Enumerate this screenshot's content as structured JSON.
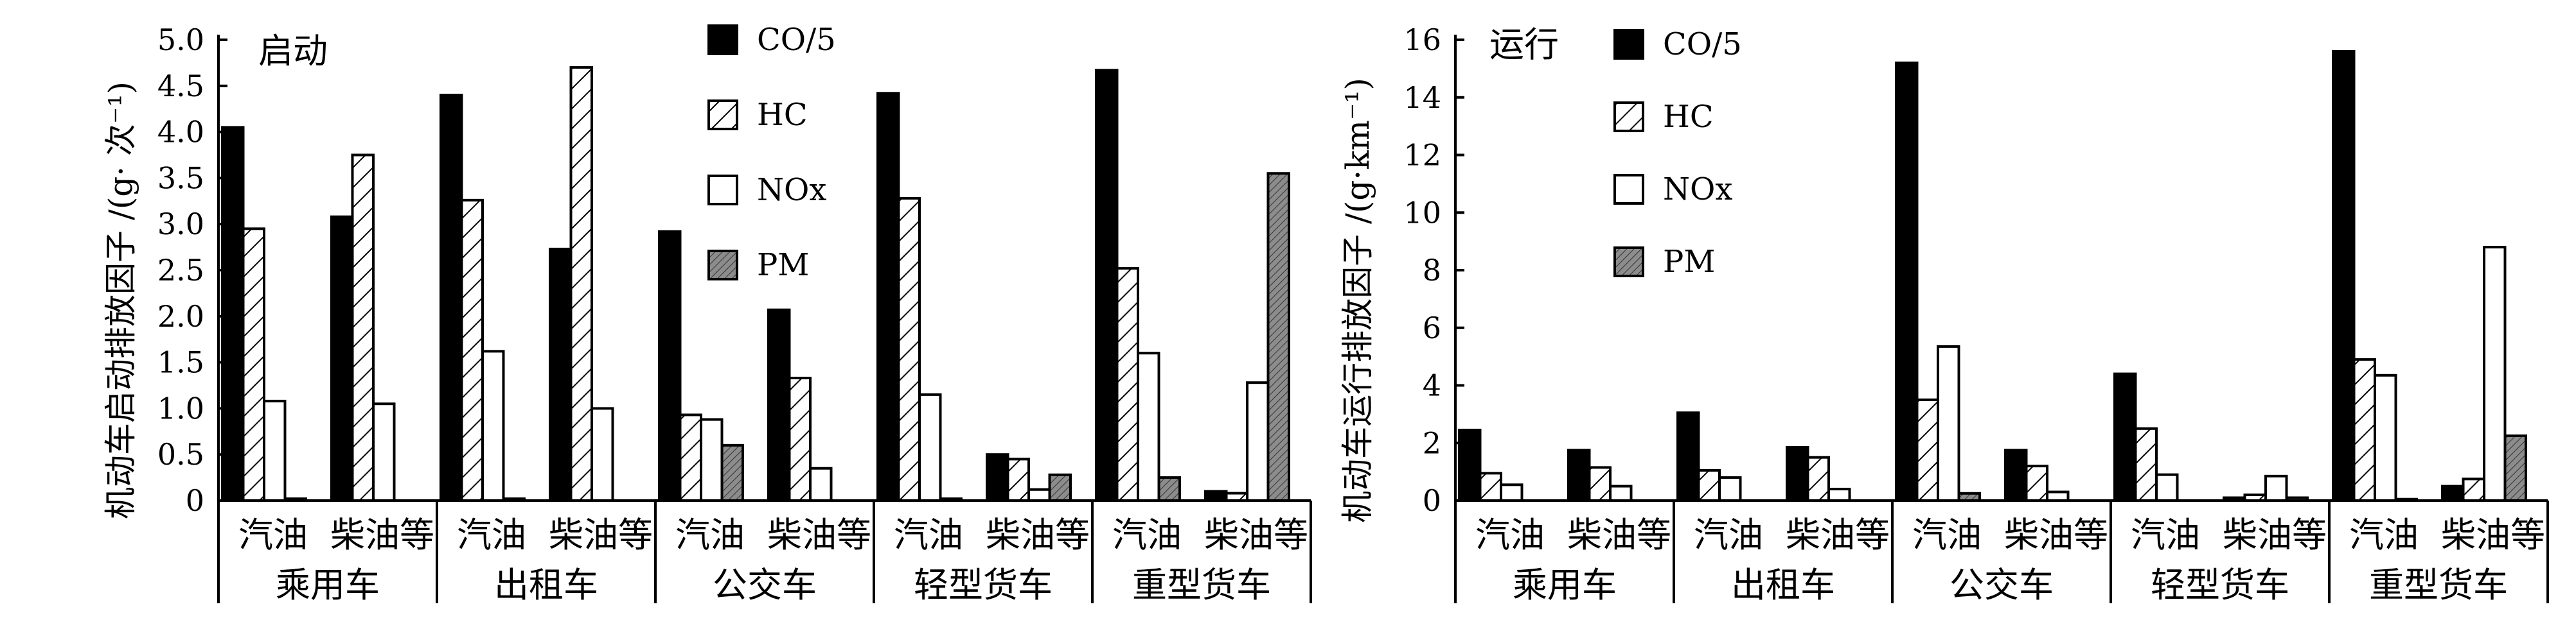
{
  "colors": {
    "co": "#000000",
    "nox": "#ffffff",
    "pm": "#8c8c8c",
    "ink": "#000000"
  },
  "series_names": [
    "CO/5",
    "HC",
    "NOx",
    "PM"
  ],
  "subcategories": [
    "汽油",
    "柴油等"
  ],
  "groups": [
    "乘用车",
    "出租车",
    "公交车",
    "轻型货车",
    "重型货车"
  ],
  "chart_data": [
    {
      "type": "bar",
      "title": "启动",
      "ylabel": "机动车启动排放因子 /(g· 次⁻¹)",
      "ylim": [
        0,
        5.0
      ],
      "yticks": [
        "0",
        "0.5",
        "1.0",
        "1.5",
        "2.0",
        "2.5",
        "3.0",
        "3.5",
        "4.0",
        "4.5",
        "5.0"
      ],
      "groups": [
        "乘用车",
        "出租车",
        "公交车",
        "轻型货车",
        "重型货车"
      ],
      "subcategories": [
        "汽油",
        "柴油等"
      ],
      "series": [
        {
          "name": "CO/5",
          "values": [
            4.05,
            3.08,
            4.4,
            2.73,
            2.92,
            2.07,
            4.42,
            0.5,
            4.67,
            0.1
          ]
        },
        {
          "name": "HC",
          "values": [
            2.95,
            3.75,
            3.26,
            4.7,
            0.93,
            1.33,
            3.28,
            0.45,
            2.52,
            0.08
          ]
        },
        {
          "name": "NOx",
          "values": [
            1.08,
            1.05,
            1.62,
            1.0,
            0.88,
            0.35,
            1.15,
            0.12,
            1.6,
            1.28
          ]
        },
        {
          "name": "PM",
          "values": [
            0.02,
            0.0,
            0.02,
            0.0,
            0.6,
            0.0,
            0.02,
            0.28,
            0.25,
            3.55
          ]
        }
      ],
      "legend": "top-center",
      "grid": false
    },
    {
      "type": "bar",
      "title": "运行",
      "ylabel": "机动车运行排放因子 /(g·km⁻¹)",
      "ylim": [
        0,
        16
      ],
      "yticks": [
        "0",
        "2",
        "4",
        "6",
        "8",
        "10",
        "12",
        "14",
        "16"
      ],
      "groups": [
        "乘用车",
        "出租车",
        "公交车",
        "轻型货车",
        "重型货车"
      ],
      "subcategories": [
        "汽油",
        "柴油等"
      ],
      "series": [
        {
          "name": "CO/5",
          "values": [
            2.45,
            1.75,
            3.05,
            1.85,
            15.2,
            1.75,
            4.4,
            0.1,
            15.6,
            0.5
          ]
        },
        {
          "name": "HC",
          "values": [
            0.95,
            1.15,
            1.05,
            1.5,
            3.5,
            1.2,
            2.5,
            0.2,
            4.9,
            0.75
          ]
        },
        {
          "name": "NOx",
          "values": [
            0.55,
            0.5,
            0.8,
            0.4,
            5.35,
            0.3,
            0.9,
            0.85,
            4.35,
            8.8
          ]
        },
        {
          "name": "PM",
          "values": [
            0.0,
            0.0,
            0.0,
            0.0,
            0.25,
            0.0,
            0.0,
            0.1,
            0.05,
            2.25
          ]
        }
      ],
      "legend": "top-left",
      "grid": false
    }
  ]
}
